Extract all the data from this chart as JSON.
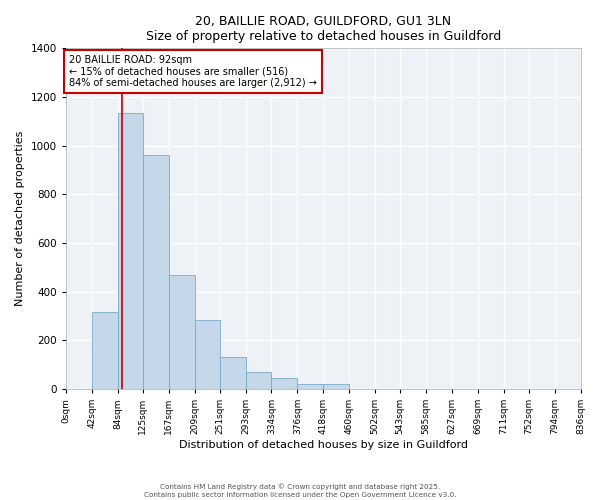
{
  "title": "20, BAILLIE ROAD, GUILDFORD, GU1 3LN",
  "subtitle": "Size of property relative to detached houses in Guildford",
  "xlabel": "Distribution of detached houses by size in Guildford",
  "ylabel": "Number of detached properties",
  "bin_labels": [
    "0sqm",
    "42sqm",
    "84sqm",
    "125sqm",
    "167sqm",
    "209sqm",
    "251sqm",
    "293sqm",
    "334sqm",
    "376sqm",
    "418sqm",
    "460sqm",
    "502sqm",
    "543sqm",
    "585sqm",
    "627sqm",
    "669sqm",
    "711sqm",
    "752sqm",
    "794sqm",
    "836sqm"
  ],
  "bar_values": [
    0,
    315,
    1135,
    960,
    470,
    285,
    130,
    68,
    45,
    20,
    20,
    0,
    0,
    0,
    0,
    0,
    0,
    0,
    0,
    0
  ],
  "bin_edges": [
    0,
    42,
    84,
    125,
    167,
    209,
    251,
    293,
    334,
    376,
    418,
    460,
    502,
    543,
    585,
    627,
    669,
    711,
    752,
    794,
    836
  ],
  "ylim": [
    0,
    1400
  ],
  "yticks": [
    0,
    200,
    400,
    600,
    800,
    1000,
    1200,
    1400
  ],
  "vline_x": 92,
  "bar_color": "#c5d8ea",
  "bar_edge_color": "#7aaac8",
  "vline_color": "#cc0000",
  "bg_color": "#eef2f7",
  "grid_color": "#ffffff",
  "annotation_text": "20 BAILLIE ROAD: 92sqm\n← 15% of detached houses are smaller (516)\n84% of semi-detached houses are larger (2,912) →",
  "annotation_box_color": "#ffffff",
  "annotation_box_edge": "#cc0000",
  "footer1": "Contains HM Land Registry data © Crown copyright and database right 2025.",
  "footer2": "Contains public sector information licensed under the Open Government Licence v3.0."
}
